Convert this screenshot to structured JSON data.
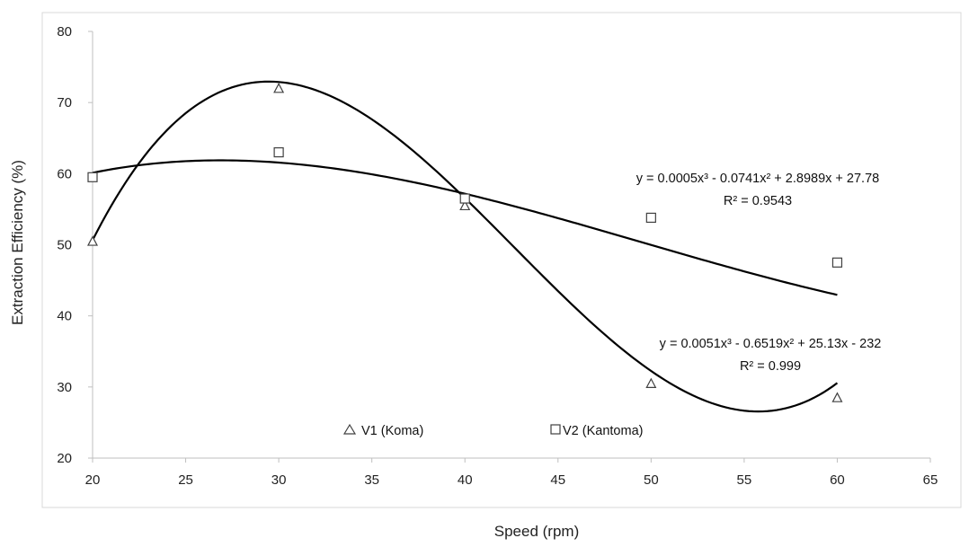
{
  "chart_data": {
    "type": "scatter",
    "title": "",
    "xlabel": "Speed (rpm)",
    "ylabel": "Extraction Efficiency (%)",
    "xlim": [
      20,
      65
    ],
    "ylim": [
      20,
      80
    ],
    "x_ticks": [
      20,
      25,
      30,
      35,
      40,
      45,
      50,
      55,
      60,
      65
    ],
    "y_ticks": [
      20,
      30,
      40,
      50,
      60,
      70,
      80
    ],
    "grid": false,
    "legend_placement": "bottom-center",
    "series": [
      {
        "name": "V1 (Koma)",
        "marker": "triangle",
        "x": [
          20,
          30,
          40,
          50,
          60
        ],
        "y": [
          50.5,
          72,
          55.5,
          30.5,
          28.5
        ],
        "trendline": {
          "type": "polynomial-3",
          "coefficients": [
            0.0051,
            -0.6519,
            25.13,
            -232
          ],
          "equation": "y = 0.0051x³ - 0.6519x² + 25.13x - 232",
          "r2": "R² = 0.999"
        }
      },
      {
        "name": "V2 (Kantoma)",
        "marker": "square",
        "x": [
          20,
          30,
          40,
          50,
          60
        ],
        "y": [
          59.5,
          63,
          56.5,
          53.8,
          47.5
        ],
        "trendline": {
          "type": "polynomial-3",
          "coefficients": [
            0.0005,
            -0.0741,
            2.8989,
            27.78
          ],
          "equation": "y = 0.0005x³ - 0.0741x² + 2.8989x + 27.78",
          "r2": "R² = 0.9543"
        }
      }
    ],
    "colors": {
      "marker": "#404040",
      "line": "#000000",
      "axis": "#bfbfbf"
    }
  }
}
